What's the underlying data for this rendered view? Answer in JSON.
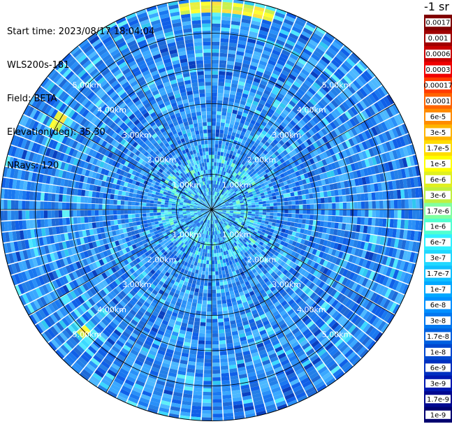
{
  "header": {
    "start_time": "Start time: 2023/08/17 18:04:04",
    "instrument": "WLS200s-181",
    "field": "Field: BETA",
    "elevation": "Elevation(deg): 35.30",
    "nrays": "NRays: 120"
  },
  "units_label": "-1 sr",
  "chart_data": {
    "type": "heatmap",
    "projection": "ppi",
    "field": "BETA",
    "elevation_deg": 35.3,
    "nrays": 120,
    "range_rings_km": [
      1.0,
      2.0,
      3.0,
      4.0,
      5.0
    ],
    "ring_labels": [
      "1.00km",
      "2.00km",
      "3.00km",
      "4.00km",
      "5.00km"
    ],
    "max_range_km": 6.0,
    "colorbar": {
      "ticks": [
        "0.0017",
        "0.001",
        "0.0006",
        "0.0003",
        "0.00017",
        "0.0001",
        "6e-5",
        "3e-5",
        "1.7e-5",
        "1e-5",
        "6e-6",
        "3e-6",
        "1.7e-6",
        "1e-6",
        "6e-7",
        "3e-7",
        "1.7e-7",
        "1e-7",
        "6e-8",
        "3e-8",
        "1.7e-8",
        "1e-8",
        "6e-9",
        "3e-9",
        "1.7e-9",
        "1e-9"
      ],
      "colors": [
        "#800000",
        "#a00000",
        "#c80000",
        "#f00000",
        "#ff3c00",
        "#ff6400",
        "#ff8c00",
        "#ffb400",
        "#ffdc00",
        "#ffff00",
        "#e0f020",
        "#c0f040",
        "#80ffa0",
        "#50ffd0",
        "#30f0ff",
        "#20d8ff",
        "#10c0ff",
        "#00a8ff",
        "#0090ff",
        "#0078f0",
        "#0060e0",
        "#0048d0",
        "#0030c0",
        "#0018b0",
        "#000890",
        "#000070"
      ]
    },
    "hotspots": [
      {
        "azimuth_deg": 5,
        "range_km": 5.75,
        "span_deg": 28,
        "label": "high backscatter arc (north)"
      },
      {
        "azimuth_deg": 300,
        "range_km": 5.0,
        "span_deg": 6,
        "label": "high backscatter patch (north-west)"
      },
      {
        "azimuth_deg": 225,
        "range_km": 5.0,
        "span_deg": 3,
        "label": "high backscatter patch (south-west)"
      }
    ]
  }
}
